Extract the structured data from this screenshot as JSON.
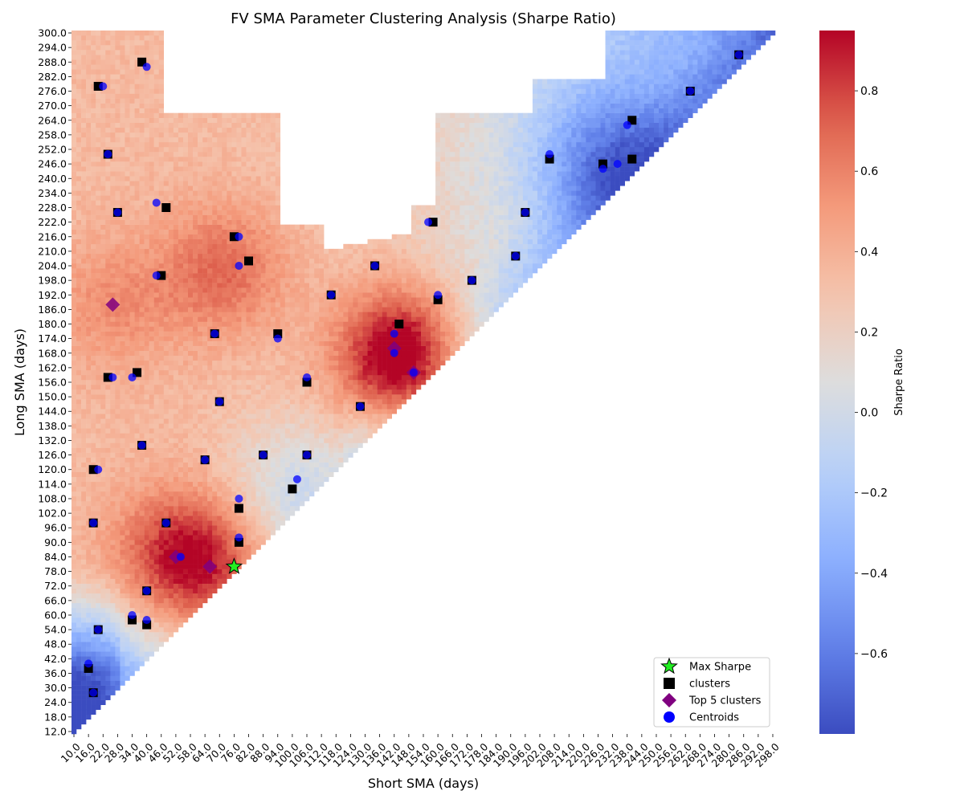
{
  "chart_data": {
    "type": "heatmap",
    "title": "FV SMA Parameter Clustering Analysis (Sharpe Ratio)",
    "xlabel": "Short SMA (days)",
    "ylabel": "Long SMA (days)",
    "x_range": [
      10,
      298
    ],
    "y_range": [
      12,
      300
    ],
    "step": 2,
    "x_ticks": [
      "10.0",
      "16.0",
      "22.0",
      "28.0",
      "34.0",
      "40.0",
      "46.0",
      "52.0",
      "58.0",
      "64.0",
      "70.0",
      "76.0",
      "82.0",
      "88.0",
      "94.0",
      "100.0",
      "106.0",
      "112.0",
      "118.0",
      "124.0",
      "130.0",
      "136.0",
      "142.0",
      "148.0",
      "154.0",
      "160.0",
      "166.0",
      "172.0",
      "178.0",
      "184.0",
      "190.0",
      "196.0",
      "202.0",
      "208.0",
      "214.0",
      "220.0",
      "226.0",
      "232.0",
      "238.0",
      "244.0",
      "250.0",
      "256.0",
      "262.0",
      "268.0",
      "274.0",
      "280.0",
      "286.0",
      "292.0",
      "298.0"
    ],
    "y_ticks": [
      "12.0",
      "18.0",
      "24.0",
      "30.0",
      "36.0",
      "42.0",
      "48.0",
      "54.0",
      "60.0",
      "66.0",
      "72.0",
      "78.0",
      "84.0",
      "90.0",
      "96.0",
      "102.0",
      "108.0",
      "114.0",
      "120.0",
      "126.0",
      "132.0",
      "138.0",
      "144.0",
      "150.0",
      "156.0",
      "162.0",
      "168.0",
      "174.0",
      "180.0",
      "186.0",
      "192.0",
      "198.0",
      "204.0",
      "210.0",
      "216.0",
      "222.0",
      "228.0",
      "234.0",
      "240.0",
      "246.0",
      "252.0",
      "258.0",
      "264.0",
      "270.0",
      "276.0",
      "282.0",
      "288.0",
      "294.0",
      "300.0"
    ],
    "colorbar": {
      "label": "Sharpe Ratio",
      "min": -0.8,
      "max": 0.95,
      "ticks": [
        -0.6,
        -0.4,
        -0.2,
        0.0,
        0.2,
        0.4,
        0.6,
        0.8
      ],
      "tick_labels": [
        "−0.6",
        "−0.4",
        "−0.2",
        "0.0",
        "0.2",
        "0.4",
        "0.6",
        "0.8"
      ],
      "colormap": "coolwarm"
    },
    "legend": {
      "position": "bottom-right",
      "items": [
        {
          "label": "Max Sharpe",
          "marker": "star",
          "color": "#22ee22"
        },
        {
          "label": "clusters",
          "marker": "square",
          "color": "#000000"
        },
        {
          "label": "Top 5 clusters",
          "marker": "diamond",
          "color": "#800080"
        },
        {
          "label": "Centroids",
          "marker": "circle",
          "color": "#0000ff"
        }
      ]
    },
    "max_sharpe": {
      "x": 76,
      "y": 80
    },
    "top5_clusters": [
      [
        26,
        188
      ],
      [
        52,
        84
      ],
      [
        66,
        80
      ],
      [
        142,
        170
      ],
      [
        150,
        160
      ]
    ],
    "clusters": [
      [
        38,
        288
      ],
      [
        20,
        278
      ],
      [
        284,
        291
      ],
      [
        264,
        276
      ],
      [
        240,
        264
      ],
      [
        24,
        250
      ],
      [
        206,
        248
      ],
      [
        228,
        246
      ],
      [
        240,
        248
      ],
      [
        48,
        228
      ],
      [
        28,
        226
      ],
      [
        158,
        222
      ],
      [
        196,
        226
      ],
      [
        76,
        216
      ],
      [
        82,
        206
      ],
      [
        192,
        208
      ],
      [
        46,
        200
      ],
      [
        134,
        204
      ],
      [
        116,
        192
      ],
      [
        160,
        190
      ],
      [
        174,
        198
      ],
      [
        68,
        176
      ],
      [
        94,
        176
      ],
      [
        144,
        180
      ],
      [
        24,
        158
      ],
      [
        36,
        160
      ],
      [
        106,
        156
      ],
      [
        70,
        148
      ],
      [
        128,
        146
      ],
      [
        38,
        130
      ],
      [
        18,
        120
      ],
      [
        64,
        124
      ],
      [
        88,
        126
      ],
      [
        106,
        126
      ],
      [
        100,
        112
      ],
      [
        18,
        98
      ],
      [
        48,
        98
      ],
      [
        78,
        104
      ],
      [
        78,
        90
      ],
      [
        40,
        70
      ],
      [
        20,
        54
      ],
      [
        34,
        58
      ],
      [
        40,
        56
      ],
      [
        16,
        38
      ],
      [
        18,
        28
      ]
    ],
    "centroids": [
      [
        40,
        286
      ],
      [
        22,
        278
      ],
      [
        284,
        291
      ],
      [
        264,
        276
      ],
      [
        238,
        262
      ],
      [
        206,
        250
      ],
      [
        228,
        244
      ],
      [
        234,
        246
      ],
      [
        24,
        250
      ],
      [
        44,
        230
      ],
      [
        28,
        226
      ],
      [
        156,
        222
      ],
      [
        196,
        226
      ],
      [
        78,
        216
      ],
      [
        78,
        204
      ],
      [
        192,
        208
      ],
      [
        44,
        200
      ],
      [
        134,
        204
      ],
      [
        116,
        192
      ],
      [
        160,
        192
      ],
      [
        174,
        198
      ],
      [
        68,
        176
      ],
      [
        94,
        174
      ],
      [
        142,
        176
      ],
      [
        142,
        168
      ],
      [
        150,
        160
      ],
      [
        26,
        158
      ],
      [
        34,
        158
      ],
      [
        106,
        158
      ],
      [
        70,
        148
      ],
      [
        128,
        146
      ],
      [
        38,
        130
      ],
      [
        20,
        120
      ],
      [
        64,
        124
      ],
      [
        88,
        126
      ],
      [
        102,
        116
      ],
      [
        106,
        126
      ],
      [
        78,
        108
      ],
      [
        78,
        92
      ],
      [
        18,
        98
      ],
      [
        48,
        98
      ],
      [
        54,
        84
      ],
      [
        40,
        70
      ],
      [
        34,
        60
      ],
      [
        40,
        58
      ],
      [
        16,
        40
      ],
      [
        18,
        28
      ],
      [
        20,
        54
      ]
    ],
    "value_field": {
      "description_of_pattern": "upper triangle (long > short); positive Sharpe in left/center, negative in bottom-left corner and along upper-right diagonal band",
      "red_hotspots": [
        [
          66,
          80,
          0.75
        ],
        [
          52,
          86,
          0.7
        ],
        [
          150,
          162,
          0.85
        ],
        [
          142,
          170,
          0.75
        ],
        [
          72,
          202,
          0.7
        ],
        [
          26,
          188,
          0.55
        ]
      ],
      "blue_regions": [
        [
          18,
          30,
          -0.7
        ],
        [
          230,
          246,
          -0.4
        ],
        [
          100,
          110,
          -0.2
        ]
      ]
    }
  }
}
